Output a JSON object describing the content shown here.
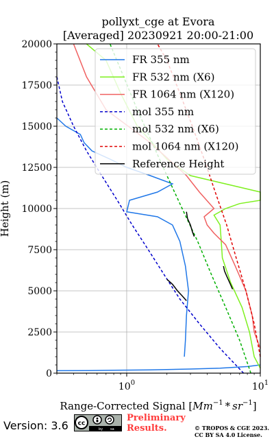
{
  "chart_data": {
    "type": "line",
    "title": "pollyxt_cge at Evora",
    "subtitle": "[Averaged] 20230921 20:00-21:00",
    "xlabel": "Range-Corrected Signal [Mm⁻¹ * sr⁻¹]",
    "xlabel_parts": {
      "base": "Range-Corrected Signal [",
      "mm": "Mm",
      "mid": " * ",
      "sr": "sr",
      "exp": "−1",
      "end": "]"
    },
    "ylabel": "Height (m)",
    "x_scale": "log",
    "xlim": [
      0.3,
      10
    ],
    "ylim": [
      0,
      20000
    ],
    "x_ticks": [
      1,
      10
    ],
    "x_tick_labels": [
      [
        "10",
        "0"
      ],
      [
        "10",
        "1"
      ]
    ],
    "y_ticks": [
      0,
      2500,
      5000,
      7500,
      10000,
      12500,
      15000,
      17500,
      20000
    ],
    "y_tick_labels": [
      "0",
      "2500",
      "5000",
      "7500",
      "10000",
      "12500",
      "15000",
      "17500",
      "20000"
    ],
    "grid": true,
    "legend_position": "upper right",
    "series": [
      {
        "name": "FR 355 nm",
        "color": "#1f77e8",
        "style": "solid",
        "points": [
          [
            10,
            500
          ],
          [
            8,
            400
          ],
          [
            5,
            300
          ],
          [
            3,
            250
          ],
          [
            1.5,
            200
          ],
          [
            0.8,
            180
          ],
          [
            0.5,
            160
          ],
          [
            0.3,
            150
          ]
        ],
        "points2": [
          [
            2.7,
            1000
          ],
          [
            2.75,
            2000
          ],
          [
            2.8,
            3500
          ],
          [
            2.9,
            5000
          ],
          [
            2.75,
            6500
          ],
          [
            2.5,
            8000
          ],
          [
            2.2,
            9000
          ],
          [
            1.7,
            9500
          ],
          [
            1.0,
            9800
          ],
          [
            1.05,
            10500
          ],
          [
            1.7,
            11000
          ],
          [
            2.2,
            11500
          ],
          [
            1.5,
            12000
          ],
          [
            1.0,
            12500
          ],
          [
            0.75,
            13000
          ],
          [
            0.55,
            13500
          ],
          [
            0.48,
            14000
          ],
          [
            0.45,
            14500
          ],
          [
            0.35,
            15000
          ],
          [
            0.3,
            15500
          ]
        ]
      },
      {
        "name": "FR 532 nm (X6)",
        "color": "#7ef01e",
        "style": "solid",
        "points": [
          [
            10,
            300
          ],
          [
            9,
            1000
          ],
          [
            8.3,
            2500
          ],
          [
            7.3,
            4000
          ],
          [
            6,
            5500
          ],
          [
            5.2,
            7000
          ],
          [
            5.1,
            8000
          ],
          [
            5.0,
            9000
          ],
          [
            4.5,
            9600
          ],
          [
            5.5,
            10000
          ],
          [
            7,
            10300
          ],
          [
            10,
            10500
          ],
          [
            10,
            11000
          ],
          [
            3,
            12000
          ],
          [
            2,
            13000
          ],
          [
            1.2,
            15000
          ],
          [
            0.9,
            17000
          ],
          [
            0.7,
            19000
          ],
          [
            0.5,
            20000
          ]
        ]
      },
      {
        "name": "FR 1064 nm (X120)",
        "color": "#f06060",
        "style": "solid",
        "points": [
          [
            10,
            1500
          ],
          [
            9,
            2500
          ],
          [
            8.7,
            3500
          ],
          [
            7.8,
            5000
          ],
          [
            6.5,
            6500
          ],
          [
            5.5,
            7800
          ],
          [
            4.5,
            8500
          ],
          [
            4.0,
            9000
          ],
          [
            3.8,
            9500
          ],
          [
            4.5,
            10000
          ],
          [
            3.5,
            11000
          ],
          [
            2.8,
            12000
          ],
          [
            1.5,
            14000
          ],
          [
            0.7,
            16000
          ],
          [
            0.5,
            18000
          ],
          [
            0.4,
            20000
          ]
        ]
      },
      {
        "name": "mol 355 nm",
        "color": "#0000cc",
        "style": "dashed",
        "points": [
          [
            7.5,
            0
          ],
          [
            5,
            1500
          ],
          [
            3.5,
            3000
          ],
          [
            2.5,
            4500
          ],
          [
            1.9,
            6000
          ],
          [
            1.45,
            7500
          ],
          [
            1.1,
            9000
          ],
          [
            0.85,
            10500
          ],
          [
            0.65,
            12000
          ],
          [
            0.5,
            13500
          ],
          [
            0.4,
            15000
          ],
          [
            0.33,
            16500
          ],
          [
            0.28,
            18000
          ]
        ]
      },
      {
        "name": "mol 532 nm (X6)",
        "color": "#00b000",
        "style": "dashed",
        "points": [
          [
            8.5,
            0
          ],
          [
            7,
            2000
          ],
          [
            5.5,
            4000
          ],
          [
            4.3,
            6000
          ],
          [
            3.4,
            8000
          ],
          [
            2.6,
            10000
          ],
          [
            2.0,
            12000
          ],
          [
            1.55,
            14000
          ],
          [
            1.2,
            16000
          ],
          [
            0.95,
            18000
          ],
          [
            0.75,
            20000
          ]
        ]
      },
      {
        "name": "mol 1064 nm (X120)",
        "color": "#e00000",
        "style": "dashed",
        "points": [
          [
            10,
            1000
          ],
          [
            9,
            3000
          ],
          [
            7.8,
            5000
          ],
          [
            6.6,
            7000
          ],
          [
            5.6,
            9000
          ],
          [
            4.6,
            11000
          ],
          [
            3.8,
            13000
          ],
          [
            3.1,
            15000
          ],
          [
            2.5,
            17000
          ],
          [
            2.0,
            19000
          ],
          [
            1.7,
            20000
          ]
        ]
      },
      {
        "name": "Reference Height",
        "color": "#000000",
        "style": "solid",
        "segments": [
          [
            [
              2.0,
              5700
            ],
            [
              2.2,
              5400
            ],
            [
              2.4,
              5000
            ],
            [
              2.6,
              4700
            ],
            [
              2.8,
              4400
            ]
          ],
          [
            [
              2.8,
              9800
            ],
            [
              2.85,
              9400
            ],
            [
              3.0,
              9000
            ],
            [
              3.1,
              8600
            ],
            [
              3.2,
              8300
            ]
          ],
          [
            [
              5.3,
              6500
            ],
            [
              5.4,
              6200
            ],
            [
              5.6,
              5900
            ],
            [
              5.9,
              5500
            ],
            [
              6.2,
              5100
            ]
          ]
        ]
      }
    ]
  },
  "footer": {
    "version": "Version: 3.6",
    "license_badge": [
      "cc",
      "by",
      "sa"
    ],
    "preliminary": [
      "Preliminary",
      "Results."
    ],
    "copyright": [
      "© TROPOS & CGE 2023.",
      "CC BY SA 4.0 License."
    ]
  }
}
